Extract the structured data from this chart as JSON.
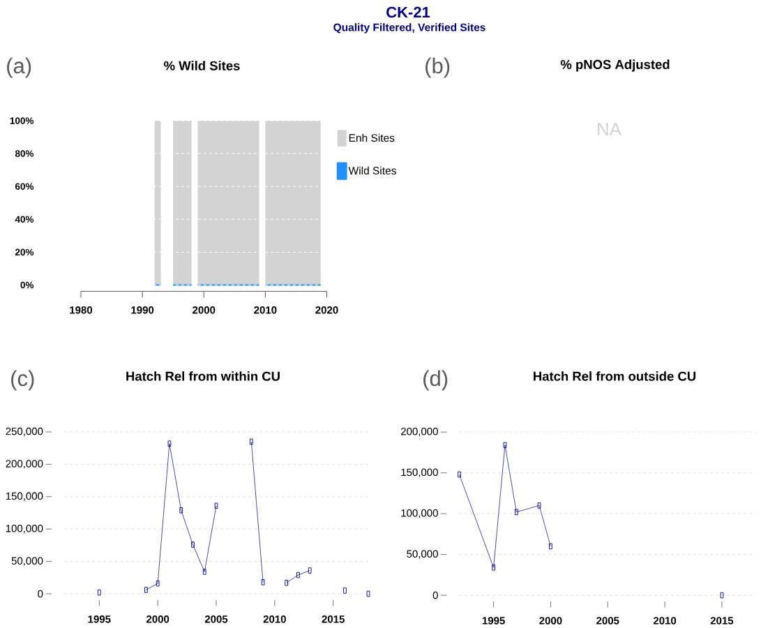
{
  "chart_data": [
    {
      "type": "other",
      "title": "CK-21",
      "subtitle": "Quality Filtered, Verified Sites"
    },
    {
      "type": "area",
      "title": "% Wild Sites",
      "annotations": [
        "(a)"
      ],
      "x": [
        1992,
        1993,
        1994,
        1995,
        1998,
        1998.5,
        1999,
        2009,
        2009.5,
        2010,
        2019
      ],
      "series": [
        {
          "name": "Enh Sites",
          "color": "#d3d3d3",
          "values": [
            100,
            100,
            null,
            100,
            100,
            null,
            100,
            100,
            null,
            100,
            100
          ]
        },
        {
          "name": "Wild Sites",
          "type": "line",
          "color": "#1e90ff",
          "values": [
            0,
            0,
            null,
            0,
            0,
            null,
            0,
            0,
            null,
            0,
            0
          ]
        }
      ],
      "xlim": [
        1980,
        2020
      ],
      "xticks": [
        1980,
        1990,
        2000,
        2010,
        2020
      ],
      "ylim": [
        0,
        100
      ],
      "yticks": [
        {
          "value": 0,
          "label": "0%"
        },
        {
          "value": 20,
          "label": "20%"
        },
        {
          "value": 40,
          "label": "40%"
        },
        {
          "value": 60,
          "label": "60%"
        },
        {
          "value": 80,
          "label": "80%"
        },
        {
          "value": 100,
          "label": "100%"
        }
      ],
      "grid": "y",
      "legend": "right"
    },
    {
      "type": "other",
      "title": "% pNOS Adjusted",
      "annotations": [
        "(b)",
        "NA"
      ]
    },
    {
      "type": "line",
      "title": "Hatch Rel from within CU",
      "annotations": [
        "(c)"
      ],
      "x": [
        1995,
        1996,
        1997,
        1998,
        1999,
        2000,
        2001,
        2002,
        2003,
        2004,
        2005,
        2006,
        2007,
        2008,
        2009,
        2010,
        2011,
        2012,
        2013,
        2014,
        2015,
        2016,
        2017,
        2018
      ],
      "values": [
        2000,
        null,
        null,
        null,
        6000,
        16000,
        232000,
        129000,
        76000,
        34000,
        136000,
        null,
        null,
        235000,
        18000,
        null,
        17000,
        29000,
        36000,
        null,
        null,
        5000,
        null,
        0
      ],
      "color": "#00008b",
      "xlim": [
        1992,
        2018
      ],
      "xticks": [
        1995,
        2000,
        2005,
        2010,
        2015
      ],
      "ylim": [
        0,
        250000
      ],
      "yticks": [
        0,
        {
          "value": 50000,
          "label": "50,000"
        },
        {
          "value": 100000,
          "label": "100,000"
        },
        {
          "value": 150000,
          "label": "150,000"
        },
        {
          "value": 200000,
          "label": "200,000"
        },
        {
          "value": 250000,
          "label": "250,000"
        }
      ],
      "grid": "y",
      "marker": "square",
      "line_style": "solid"
    },
    {
      "type": "line",
      "title": "Hatch Rel from outside CU",
      "annotations": [
        "(d)"
      ],
      "x": [
        1992,
        1995,
        1996,
        1997,
        1999,
        2000,
        2001,
        2015
      ],
      "values": [
        148000,
        34000,
        184000,
        102000,
        110000,
        60000,
        null,
        0
      ],
      "color": "#00008b",
      "xlim": [
        1992,
        2018
      ],
      "xticks": [
        1995,
        2000,
        2005,
        2010,
        2015
      ],
      "ylim": [
        0,
        200000
      ],
      "yticks": [
        0,
        {
          "value": 50000,
          "label": "50,000"
        },
        {
          "value": 100000,
          "label": "100,000"
        },
        {
          "value": 150000,
          "label": "150,000"
        },
        {
          "value": 200000,
          "label": "200,000"
        }
      ],
      "grid": "y",
      "marker": "square",
      "line_style": "solid"
    }
  ]
}
